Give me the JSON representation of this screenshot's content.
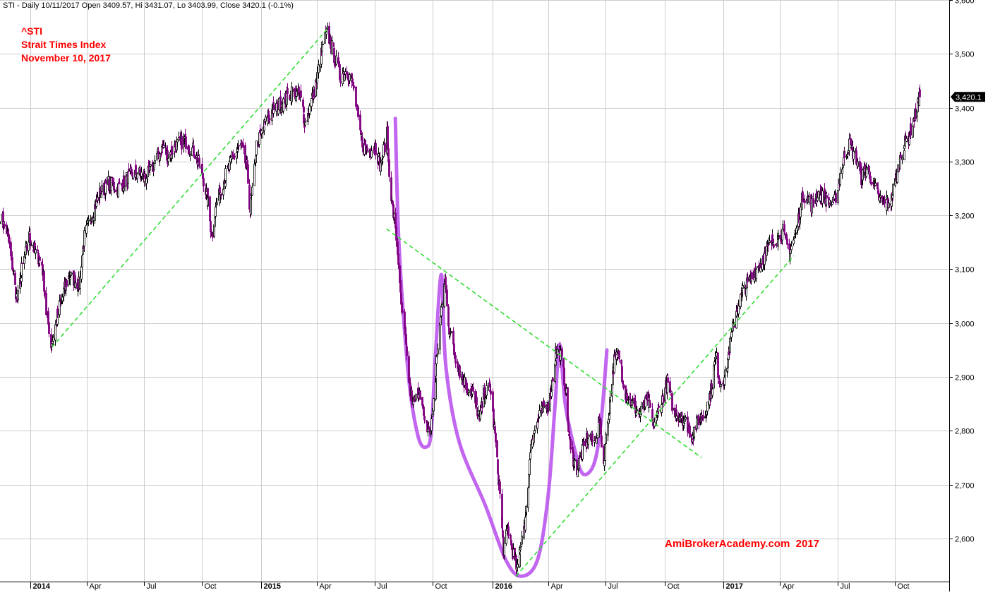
{
  "header_line": "STI - Daily 10/11/2017 Open 3409.57, Hi 3431.07, Lo 3403.99, Close 3420.1 (-0.1%)",
  "annotation": {
    "ticker": "^STI",
    "name": "Strait Times Index",
    "date": "November 10, 2017"
  },
  "watermark": "AmiBrokerAcademy.com  2017",
  "last_price_label": "3,420.1",
  "colors": {
    "up_candle": "#000000",
    "down_candle": "#800080",
    "trendline": "#33dd33",
    "pattern": "#bb55ee",
    "annotation_text": "#ff0000",
    "grid": "#cccccc"
  },
  "chart_data": {
    "type": "line",
    "title": "",
    "xlabel": "",
    "ylabel": "",
    "style": "candlestick",
    "ylim": [
      2520,
      3600
    ],
    "y_ticks": [
      2600,
      2700,
      2800,
      2900,
      3000,
      3100,
      3200,
      3300,
      3400,
      3500,
      3600
    ],
    "y_tick_labels": [
      "2,600",
      "2,700",
      "2,800",
      "2,900",
      "3,000",
      "3,100",
      "3,200",
      "3,300",
      "3,400",
      "3,500",
      "3,600"
    ],
    "x_ticks": [
      {
        "label": "2014",
        "date": "2014-01-02",
        "major": true
      },
      {
        "label": "Apr",
        "date": "2014-04-01",
        "major": false
      },
      {
        "label": "Jul",
        "date": "2014-07-01",
        "major": false
      },
      {
        "label": "Oct",
        "date": "2014-10-01",
        "major": false
      },
      {
        "label": "2015",
        "date": "2015-01-02",
        "major": true
      },
      {
        "label": "Apr",
        "date": "2015-04-01",
        "major": false
      },
      {
        "label": "Jul",
        "date": "2015-07-01",
        "major": false
      },
      {
        "label": "Oct",
        "date": "2015-10-01",
        "major": false
      },
      {
        "label": "2016",
        "date": "2016-01-04",
        "major": true
      },
      {
        "label": "Apr",
        "date": "2016-04-01",
        "major": false
      },
      {
        "label": "Jul",
        "date": "2016-07-01",
        "major": false
      },
      {
        "label": "Oct",
        "date": "2016-10-03",
        "major": false
      },
      {
        "label": "2017",
        "date": "2017-01-03",
        "major": true
      },
      {
        "label": "Apr",
        "date": "2017-04-03",
        "major": false
      },
      {
        "label": "Jul",
        "date": "2017-07-03",
        "major": false
      },
      {
        "label": "Oct",
        "date": "2017-10-02",
        "major": false
      }
    ],
    "x_range": [
      "2013-11-15",
      "2017-12-27"
    ],
    "grid": true,
    "series": [
      {
        "role": "close",
        "points": [
          [
            "2013-11-15",
            3200
          ],
          [
            "2013-11-25",
            3170
          ],
          [
            "2013-12-05",
            3100
          ],
          [
            "2013-12-12",
            3040
          ],
          [
            "2013-12-19",
            3100
          ],
          [
            "2013-12-31",
            3160
          ],
          [
            "2014-01-10",
            3130
          ],
          [
            "2014-01-20",
            3110
          ],
          [
            "2014-01-27",
            3020
          ],
          [
            "2014-02-04",
            2960
          ],
          [
            "2014-02-14",
            3020
          ],
          [
            "2014-02-24",
            3060
          ],
          [
            "2014-03-04",
            3090
          ],
          [
            "2014-03-12",
            3080
          ],
          [
            "2014-03-20",
            3070
          ],
          [
            "2014-03-28",
            3160
          ],
          [
            "2014-04-08",
            3200
          ],
          [
            "2014-04-22",
            3240
          ],
          [
            "2014-05-05",
            3260
          ],
          [
            "2014-05-20",
            3250
          ],
          [
            "2014-06-04",
            3270
          ],
          [
            "2014-06-20",
            3280
          ],
          [
            "2014-07-01",
            3270
          ],
          [
            "2014-07-10",
            3280
          ],
          [
            "2014-07-22",
            3310
          ],
          [
            "2014-08-01",
            3330
          ],
          [
            "2014-08-07",
            3310
          ],
          [
            "2014-08-20",
            3330
          ],
          [
            "2014-09-03",
            3340
          ],
          [
            "2014-09-17",
            3320
          ],
          [
            "2014-10-01",
            3280
          ],
          [
            "2014-10-10",
            3220
          ],
          [
            "2014-10-16",
            3160
          ],
          [
            "2014-10-23",
            3220
          ],
          [
            "2014-11-05",
            3270
          ],
          [
            "2014-11-20",
            3310
          ],
          [
            "2014-12-01",
            3330
          ],
          [
            "2014-12-10",
            3290
          ],
          [
            "2014-12-16",
            3210
          ],
          [
            "2014-12-26",
            3330
          ],
          [
            "2015-01-08",
            3370
          ],
          [
            "2015-01-22",
            3400
          ],
          [
            "2015-02-05",
            3410
          ],
          [
            "2015-02-20",
            3430
          ],
          [
            "2015-03-05",
            3420
          ],
          [
            "2015-03-13",
            3370
          ],
          [
            "2015-03-20",
            3400
          ],
          [
            "2015-03-31",
            3450
          ],
          [
            "2015-04-10",
            3520
          ],
          [
            "2015-04-17",
            3540
          ],
          [
            "2015-04-27",
            3500
          ],
          [
            "2015-05-07",
            3460
          ],
          [
            "2015-05-18",
            3470
          ],
          [
            "2015-05-28",
            3440
          ],
          [
            "2015-06-05",
            3370
          ],
          [
            "2015-06-12",
            3330
          ],
          [
            "2015-06-22",
            3320
          ],
          [
            "2015-07-02",
            3330
          ],
          [
            "2015-07-10",
            3290
          ],
          [
            "2015-07-20",
            3350
          ],
          [
            "2015-07-28",
            3220
          ],
          [
            "2015-08-05",
            3150
          ],
          [
            "2015-08-12",
            3030
          ],
          [
            "2015-08-19",
            2960
          ],
          [
            "2015-08-26",
            2870
          ],
          [
            "2015-09-01",
            2850
          ],
          [
            "2015-09-10",
            2880
          ],
          [
            "2015-09-18",
            2810
          ],
          [
            "2015-09-28",
            2800
          ],
          [
            "2015-10-06",
            2920
          ],
          [
            "2015-10-13",
            3010
          ],
          [
            "2015-10-20",
            3080
          ],
          [
            "2015-10-27",
            2990
          ],
          [
            "2015-11-05",
            2940
          ],
          [
            "2015-11-16",
            2900
          ],
          [
            "2015-11-24",
            2880
          ],
          [
            "2015-12-03",
            2870
          ],
          [
            "2015-12-14",
            2820
          ],
          [
            "2015-12-21",
            2870
          ],
          [
            "2015-12-31",
            2880
          ],
          [
            "2016-01-07",
            2790
          ],
          [
            "2016-01-14",
            2700
          ],
          [
            "2016-01-21",
            2580
          ],
          [
            "2016-01-28",
            2620
          ],
          [
            "2016-02-05",
            2570
          ],
          [
            "2016-02-12",
            2540
          ],
          [
            "2016-02-18",
            2600
          ],
          [
            "2016-02-26",
            2650
          ],
          [
            "2016-03-04",
            2780
          ],
          [
            "2016-03-15",
            2820
          ],
          [
            "2016-03-24",
            2840
          ],
          [
            "2016-04-04",
            2860
          ],
          [
            "2016-04-13",
            2950
          ],
          [
            "2016-04-21",
            2940
          ],
          [
            "2016-04-28",
            2880
          ],
          [
            "2016-05-06",
            2760
          ],
          [
            "2016-05-16",
            2730
          ],
          [
            "2016-05-24",
            2760
          ],
          [
            "2016-06-03",
            2790
          ],
          [
            "2016-06-13",
            2780
          ],
          [
            "2016-06-21",
            2820
          ],
          [
            "2016-06-27",
            2740
          ],
          [
            "2016-07-05",
            2830
          ],
          [
            "2016-07-14",
            2930
          ],
          [
            "2016-07-22",
            2940
          ],
          [
            "2016-08-01",
            2870
          ],
          [
            "2016-08-12",
            2850
          ],
          [
            "2016-08-24",
            2830
          ],
          [
            "2016-09-05",
            2860
          ],
          [
            "2016-09-14",
            2810
          ],
          [
            "2016-09-26",
            2850
          ],
          [
            "2016-10-06",
            2890
          ],
          [
            "2016-10-18",
            2830
          ],
          [
            "2016-10-28",
            2830
          ],
          [
            "2016-11-07",
            2810
          ],
          [
            "2016-11-14",
            2790
          ],
          [
            "2016-11-24",
            2820
          ],
          [
            "2016-12-05",
            2830
          ],
          [
            "2016-12-15",
            2880
          ],
          [
            "2016-12-22",
            2940
          ],
          [
            "2016-12-29",
            2890
          ],
          [
            "2017-01-06",
            2900
          ],
          [
            "2017-01-13",
            2960
          ],
          [
            "2017-01-23",
            3020
          ],
          [
            "2017-02-03",
            3060
          ],
          [
            "2017-02-14",
            3080
          ],
          [
            "2017-02-24",
            3100
          ],
          [
            "2017-03-07",
            3120
          ],
          [
            "2017-03-20",
            3150
          ],
          [
            "2017-03-29",
            3160
          ],
          [
            "2017-04-07",
            3170
          ],
          [
            "2017-04-18",
            3130
          ],
          [
            "2017-04-28",
            3170
          ],
          [
            "2017-05-10",
            3240
          ],
          [
            "2017-05-22",
            3220
          ],
          [
            "2017-06-01",
            3240
          ],
          [
            "2017-06-14",
            3230
          ],
          [
            "2017-06-27",
            3220
          ],
          [
            "2017-07-06",
            3270
          ],
          [
            "2017-07-13",
            3310
          ],
          [
            "2017-07-21",
            3330
          ],
          [
            "2017-07-31",
            3310
          ],
          [
            "2017-08-09",
            3270
          ],
          [
            "2017-08-18",
            3290
          ],
          [
            "2017-08-28",
            3260
          ],
          [
            "2017-09-07",
            3230
          ],
          [
            "2017-09-15",
            3220
          ],
          [
            "2017-09-26",
            3230
          ],
          [
            "2017-10-05",
            3280
          ],
          [
            "2017-10-13",
            3320
          ],
          [
            "2017-10-24",
            3350
          ],
          [
            "2017-11-01",
            3380
          ],
          [
            "2017-11-10",
            3420
          ]
        ]
      }
    ],
    "overlays": [
      {
        "kind": "trendline",
        "color": "trendline",
        "from": [
          "2014-02-05",
          2955
        ],
        "to": [
          "2015-04-20",
          3550
        ]
      },
      {
        "kind": "trendline",
        "color": "trendline",
        "from": [
          "2015-07-20",
          3175
        ],
        "to": [
          "2016-11-30",
          2750
        ]
      },
      {
        "kind": "trendline",
        "color": "trendline",
        "from": [
          "2016-02-10",
          2530
        ],
        "to": [
          "2017-04-25",
          3125
        ]
      },
      {
        "kind": "pattern",
        "color": "pattern",
        "points": [
          [
            "2015-08-03",
            3380
          ],
          [
            "2015-08-09",
            3140
          ],
          [
            "2015-08-24",
            2900
          ],
          [
            "2015-09-08",
            2790
          ],
          [
            "2015-09-21",
            2770
          ],
          [
            "2015-09-29",
            2800
          ],
          [
            "2015-10-06",
            2950
          ],
          [
            "2015-10-15",
            3090
          ],
          [
            "2015-10-22",
            2920
          ],
          [
            "2015-11-12",
            2780
          ],
          [
            "2015-12-24",
            2660
          ],
          [
            "2016-01-25",
            2560
          ],
          [
            "2016-02-18",
            2530
          ],
          [
            "2016-03-15",
            2560
          ],
          [
            "2016-04-01",
            2680
          ],
          [
            "2016-04-12",
            2850
          ],
          [
            "2016-04-19",
            2960
          ],
          [
            "2016-04-28",
            2850
          ],
          [
            "2016-05-12",
            2770
          ],
          [
            "2016-05-26",
            2720
          ],
          [
            "2016-06-13",
            2740
          ],
          [
            "2016-06-24",
            2820
          ],
          [
            "2016-07-03",
            2950
          ]
        ]
      }
    ]
  }
}
